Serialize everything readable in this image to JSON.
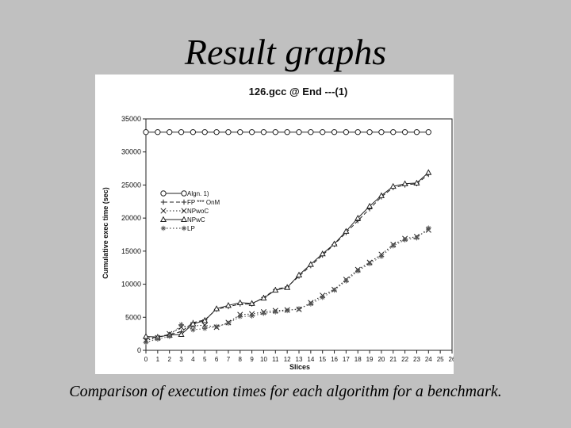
{
  "slide": {
    "title": "Result graphs",
    "caption": "Comparison of execution times for each algorithm for a benchmark."
  },
  "chart_data": {
    "type": "line",
    "title": "126.gcc @ End ---(1)",
    "xlabel": "Slices",
    "ylabel": "Cumulative exec time (sec)",
    "xlim": [
      0,
      26
    ],
    "ylim": [
      0,
      35000
    ],
    "x_ticks": [
      "0",
      "1",
      "2",
      "3",
      "4",
      "5",
      "6",
      "7",
      "8",
      "9",
      "10",
      "11",
      "12",
      "13",
      "14",
      "15",
      "16",
      "17",
      "18",
      "19",
      "20",
      "21",
      "22",
      "23",
      "24",
      "25",
      "26"
    ],
    "y_ticks": [
      "0",
      "5000",
      "10000",
      "15000",
      "20000",
      "25000",
      "30000",
      "35000"
    ],
    "legend_position": "middle-left",
    "series": [
      {
        "name": "Algn. 1)",
        "marker": "circle",
        "dash": "solid",
        "x": [
          0,
          1,
          2,
          3,
          4,
          5,
          6,
          7,
          8,
          9,
          10,
          11,
          12,
          13,
          14,
          15,
          16,
          17,
          18,
          19,
          20,
          21,
          22,
          23,
          24
        ],
        "values": [
          33000,
          33000,
          33000,
          33000,
          33000,
          33000,
          33000,
          33000,
          33000,
          33000,
          33000,
          33000,
          33000,
          33000,
          33000,
          33000,
          33000,
          33000,
          33000,
          33000,
          33000,
          33000,
          33000,
          33000,
          33000
        ]
      },
      {
        "name": "FP *** OnM",
        "marker": "plus",
        "dash": "dashed",
        "x": [
          0,
          1,
          2,
          3,
          4,
          5,
          6,
          7,
          8,
          9,
          10,
          11,
          12,
          13,
          14,
          15,
          16,
          17,
          18,
          19,
          20,
          21,
          22,
          23,
          24
        ],
        "values": [
          1800,
          2000,
          2400,
          2800,
          4200,
          4600,
          6200,
          6600,
          7000,
          7000,
          8000,
          9200,
          9600,
          11200,
          12800,
          14400,
          16000,
          17800,
          19600,
          21400,
          23200,
          24600,
          25000,
          25200,
          26600
        ]
      },
      {
        "name": "NPwoC",
        "marker": "x",
        "dash": "dotted",
        "x": [
          0,
          1,
          2,
          3,
          4,
          5,
          6,
          7,
          8,
          9,
          10,
          11,
          12,
          13,
          14,
          15,
          16,
          17,
          18,
          19,
          20,
          21,
          22,
          23,
          24
        ],
        "values": [
          1500,
          1900,
          2500,
          3500,
          3700,
          3800,
          3500,
          4200,
          5400,
          5500,
          5800,
          6000,
          6100,
          6200,
          7200,
          8300,
          9200,
          10700,
          12200,
          13300,
          14500,
          16000,
          16900,
          17200,
          18200
        ]
      },
      {
        "name": "NPwC",
        "marker": "triangle",
        "dash": "solid",
        "x": [
          0,
          1,
          2,
          3,
          4,
          5,
          6,
          7,
          8,
          9,
          10,
          11,
          12,
          13,
          14,
          15,
          16,
          17,
          18,
          19,
          20,
          21,
          22,
          23,
          24
        ],
        "values": [
          2100,
          2000,
          2300,
          2400,
          4000,
          4500,
          6300,
          6800,
          7200,
          7100,
          7900,
          9100,
          9500,
          11400,
          13000,
          14600,
          16100,
          18000,
          20000,
          21800,
          23400,
          24800,
          25200,
          25300,
          26900
        ]
      },
      {
        "name": "LP",
        "marker": "asterisk",
        "dash": "dotted",
        "x": [
          0,
          1,
          2,
          3,
          4,
          5,
          6,
          7,
          8,
          9,
          10,
          11,
          12,
          13,
          14,
          15,
          16,
          17,
          18,
          19,
          20,
          21,
          22,
          23,
          24
        ],
        "values": [
          1200,
          1700,
          2100,
          3900,
          3100,
          3300,
          3600,
          4100,
          5100,
          5200,
          5600,
          5800,
          6000,
          6300,
          7000,
          8000,
          9100,
          10500,
          12000,
          13100,
          14200,
          15800,
          16700,
          17000,
          18500
        ]
      }
    ]
  }
}
